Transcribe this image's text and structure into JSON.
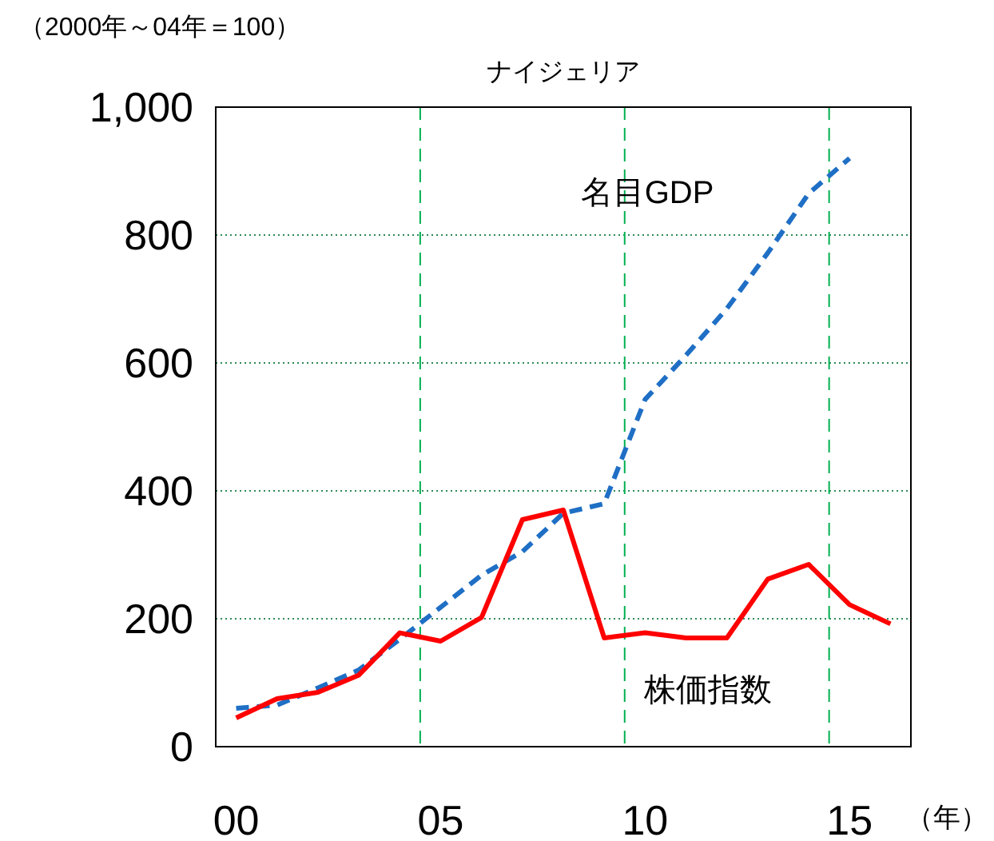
{
  "chart_data": {
    "type": "line",
    "title": "ナイジェリア",
    "subtitle": "（2000年～04年＝100）",
    "xlabel": "（年）",
    "x": [
      0,
      1,
      2,
      3,
      4,
      5,
      6,
      7,
      8,
      9,
      10,
      11,
      12,
      13,
      14,
      15,
      16
    ],
    "xlim": [
      -0.5,
      16.5
    ],
    "xticks": [
      {
        "value": 0,
        "label": "00"
      },
      {
        "value": 5,
        "label": "05"
      },
      {
        "value": 10,
        "label": "10"
      },
      {
        "value": 15,
        "label": "15"
      }
    ],
    "ylim": [
      0,
      1000
    ],
    "yticks": [
      0,
      200,
      400,
      600,
      800,
      {
        "value": 1000,
        "label": "1,000"
      }
    ],
    "grid": "y",
    "legend": false,
    "marker": "none",
    "ref_lines": [
      {
        "axis": "x",
        "value": 4.5,
        "color": "#00b050",
        "line_style": "dashed"
      },
      {
        "axis": "x",
        "value": 9.5,
        "color": "#00b050",
        "line_style": "dashed"
      },
      {
        "axis": "x",
        "value": 14.5,
        "color": "#00b050",
        "line_style": "dashed"
      }
    ],
    "series": [
      {
        "name": "名目GDP",
        "color": "#1f6fc5",
        "line_style": "dashed",
        "values": [
          60,
          65,
          92,
          120,
          168,
          218,
          268,
          305,
          365,
          380,
          543,
          612,
          685,
          772,
          865,
          920,
          null
        ]
      },
      {
        "name": "株価指数",
        "color": "#ff0000",
        "line_style": "solid",
        "values": [
          45,
          75,
          85,
          112,
          178,
          165,
          202,
          355,
          370,
          170,
          178,
          170,
          170,
          262,
          285,
          222,
          192
        ]
      }
    ]
  }
}
